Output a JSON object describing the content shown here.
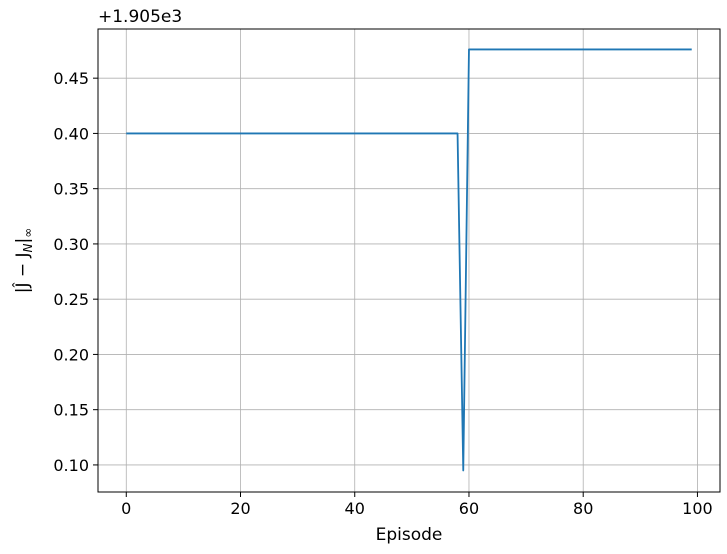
{
  "chart_data": {
    "type": "line",
    "title": "",
    "xlabel": "Episode",
    "ylabel": "|Ĵ − J_N|∞",
    "y_offset_text": "+1.905e3",
    "xlim": [
      -4.95,
      103.95
    ],
    "ylim": [
      0.0755,
      0.4945
    ],
    "xticks": [
      0,
      20,
      40,
      60,
      80,
      100
    ],
    "xtick_labels": [
      "0",
      "20",
      "40",
      "60",
      "80",
      "100"
    ],
    "yticks": [
      0.1,
      0.15,
      0.2,
      0.25,
      0.3,
      0.35,
      0.4,
      0.45
    ],
    "ytick_labels": [
      "0.10",
      "0.15",
      "0.20",
      "0.25",
      "0.30",
      "0.35",
      "0.40",
      "0.45"
    ],
    "grid": true,
    "legend": "none",
    "series": [
      {
        "color": "#1f77b4",
        "x": [
          0,
          58,
          59,
          60,
          99
        ],
        "y": [
          0.4,
          0.4,
          0.095,
          0.476,
          0.476
        ]
      }
    ]
  }
}
